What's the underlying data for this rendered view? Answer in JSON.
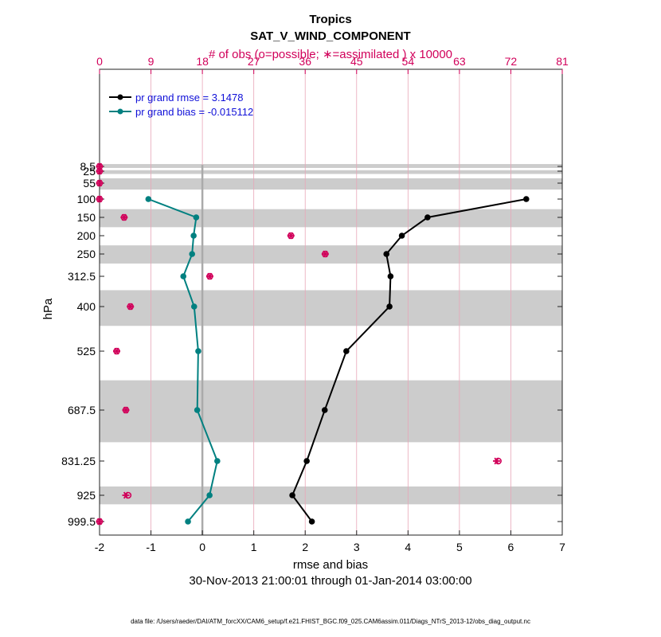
{
  "chart_data": {
    "type": "line",
    "title": "Tropics",
    "subtitle": "SAT_V_WIND_COMPONENT",
    "top_axis_label": "# of obs (o=possible; ∗=assimilated ) x 10000",
    "top_ticks": [
      "0",
      "9",
      "18",
      "27",
      "36",
      "45",
      "54",
      "63",
      "72",
      "81"
    ],
    "top_range": [
      0,
      81
    ],
    "xlabel": "rmse and bias",
    "xlim": [
      -2,
      7
    ],
    "x_ticks": [
      "-2",
      "-1",
      "0",
      "1",
      "2",
      "3",
      "4",
      "5",
      "6",
      "7"
    ],
    "ylabel": "hPa",
    "levels": [
      8.5,
      25,
      55,
      100,
      150,
      200,
      250,
      312.5,
      400,
      525,
      687.5,
      831.25,
      925,
      999.5
    ],
    "level_labels": [
      "8.5",
      "25",
      "55",
      "100",
      "150",
      "200",
      "250",
      "312.5",
      "400",
      "525",
      "687.5",
      "831.25",
      "925",
      "999.5"
    ],
    "shaded_bands_hPa": [
      [
        5,
        12
      ],
      [
        20,
        30
      ],
      [
        40,
        70
      ],
      [
        125,
        175
      ],
      [
        225,
        275
      ],
      [
        350,
        450
      ],
      [
        600,
        775
      ],
      [
        900,
        950
      ]
    ],
    "series": [
      {
        "name": "pr grand rmse = 3.1478",
        "color": "#000000",
        "levels": [
          100,
          150,
          200,
          250,
          312.5,
          400,
          525,
          687.5,
          831.25,
          925,
          999.5
        ],
        "values": [
          6.3,
          4.38,
          3.88,
          3.58,
          3.66,
          3.64,
          2.8,
          2.38,
          2.03,
          1.75,
          2.13
        ]
      },
      {
        "name": "pr grand bias = -0.015112",
        "color": "#008080",
        "levels": [
          100,
          150,
          200,
          250,
          312.5,
          400,
          525,
          687.5,
          831.25,
          925,
          999.5
        ],
        "values": [
          -1.05,
          -0.12,
          -0.17,
          -0.2,
          -0.37,
          -0.16,
          -0.08,
          -0.1,
          0.29,
          0.14,
          -0.28
        ]
      }
    ],
    "obs_counts_x10000": {
      "levels": [
        8.5,
        25,
        55,
        100,
        150,
        200,
        250,
        312.5,
        400,
        525,
        687.5,
        831.25,
        925,
        999.5
      ],
      "possible": [
        0,
        0,
        0,
        0,
        4.3,
        33.5,
        39.5,
        19.3,
        5.4,
        3.0,
        4.6,
        69.8,
        5.0,
        0
      ],
      "assimilated": [
        0,
        0,
        0,
        0,
        4.3,
        33.5,
        39.5,
        19.3,
        5.4,
        3.0,
        4.6,
        69.5,
        4.6,
        0
      ]
    },
    "grid": true,
    "legend_position": "top-left",
    "period": "30-Nov-2013 21:00:01 through 01-Jan-2014 03:00:00",
    "footer": "data file: /Users/raeder/DAI/ATM_forcXX/CAM6_setup/f.e21.FHIST_BGC.f09_025.CAM6assim.011/Diags_NTrS_2013-12/obs_diag_output.nc"
  }
}
